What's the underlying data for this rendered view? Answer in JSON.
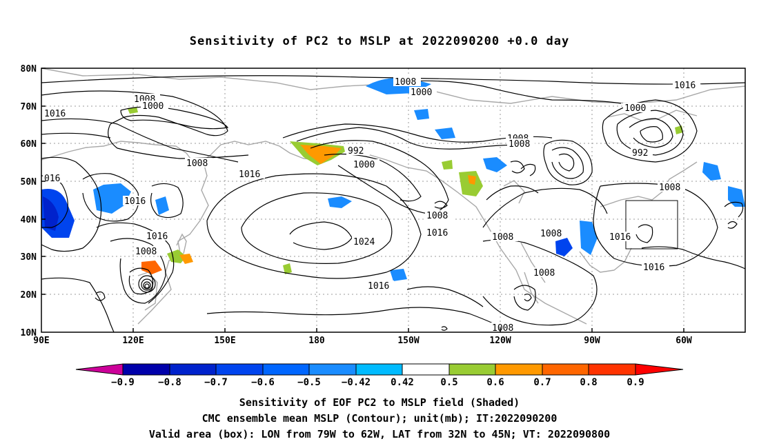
{
  "title": "Sensitivity of PC2 to MSLP at 2022090200 +0.0 day",
  "map": {
    "lat_labels": [
      "80N",
      "70N",
      "60N",
      "50N",
      "40N",
      "30N",
      "20N",
      "10N"
    ],
    "lon_labels": [
      "90E",
      "120E",
      "150E",
      "180",
      "150W",
      "120W",
      "90W",
      "60W"
    ],
    "contour_labels": [
      {
        "text": "1008",
        "name": "contour-label-1008-nw"
      },
      {
        "text": "1000",
        "name": "contour-label-1000-nw"
      },
      {
        "text": "1016",
        "name": "contour-label-1016-nw"
      },
      {
        "text": "1008",
        "name": "contour-label-1008-arctic"
      },
      {
        "text": "1000",
        "name": "contour-label-1000-arctic"
      },
      {
        "text": "1016",
        "name": "contour-label-1016-ne"
      },
      {
        "text": "1000",
        "name": "contour-label-1000-canada"
      },
      {
        "text": "992",
        "name": "contour-label-992-canada"
      },
      {
        "text": "1008",
        "name": "contour-label-1008-mid"
      },
      {
        "text": "1008",
        "name": "contour-label-1008-mid2"
      },
      {
        "text": "992",
        "name": "contour-label-992-aleutian"
      },
      {
        "text": "1000",
        "name": "contour-label-1000-aleutian"
      },
      {
        "text": "1008",
        "name": "contour-label-1008-east-asia"
      },
      {
        "text": "1016",
        "name": "contour-label-1016-west-pacific"
      },
      {
        "text": "016",
        "name": "contour-label-016-west"
      },
      {
        "text": "1016",
        "name": "contour-label-1016-china"
      },
      {
        "text": "1016",
        "name": "contour-label-1016-south-china"
      },
      {
        "text": "1008",
        "name": "contour-label-1008-typhoon"
      },
      {
        "text": "1024",
        "name": "contour-label-1024-high"
      },
      {
        "text": "1008",
        "name": "contour-label-1008-gulf"
      },
      {
        "text": "1016",
        "name": "contour-label-1016-ne-pacific"
      },
      {
        "text": "1008",
        "name": "contour-label-1008-west-us"
      },
      {
        "text": "1008",
        "name": "contour-label-1008-central-us"
      },
      {
        "text": "1008",
        "name": "contour-label-1008-ontario"
      },
      {
        "text": "1016",
        "name": "contour-label-1016-atlantic"
      },
      {
        "text": "1016",
        "name": "contour-label-1016-subtropic"
      },
      {
        "text": "1008",
        "name": "contour-label-1008-mexico"
      },
      {
        "text": "1016",
        "name": "contour-label-1016-tropical"
      },
      {
        "text": "1008",
        "name": "contour-label-1008-equator"
      }
    ]
  },
  "colorbar": {
    "colors": [
      "#cc0099",
      "#0000aa",
      "#0022cc",
      "#0044ee",
      "#0066ff",
      "#1a8cff",
      "#00bbff",
      "#ffffff",
      "#99cc33",
      "#ff9900",
      "#ff6600",
      "#ff3300",
      "#ff0000",
      "#ff99cc"
    ],
    "labels": [
      "−0.9",
      "−0.8",
      "−0.7",
      "−0.6",
      "−0.5",
      "−0.42",
      "0.42",
      "0.5",
      "0.6",
      "0.7",
      "0.8",
      "0.9"
    ]
  },
  "footer": {
    "line1": "Sensitivity of EOF PC2 to MSLP field (Shaded)",
    "line2": "CMC ensemble mean MSLP (Contour); unit(mb); IT:2022090200",
    "line3": "Valid area (box): LON from 79W to 62W, LAT from 32N to 45N; VT: 2022090800"
  }
}
